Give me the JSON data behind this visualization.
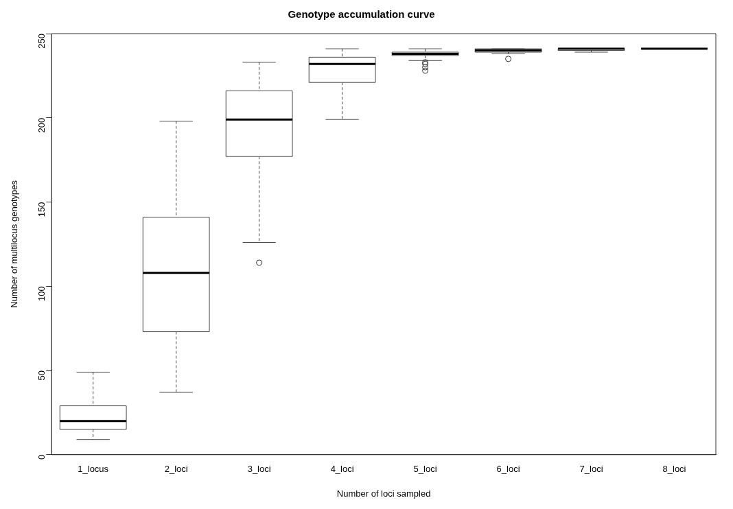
{
  "chart_data": {
    "type": "box",
    "title": "Genotype accumulation curve",
    "xlabel": "Number of loci sampled",
    "ylabel": "Number of multilocus genotypes",
    "categories": [
      "1_locus",
      "2_loci",
      "3_loci",
      "4_loci",
      "5_loci",
      "6_loci",
      "7_loci",
      "8_loci"
    ],
    "boxes": [
      {
        "low": 9,
        "q1": 15,
        "median": 20,
        "q3": 29,
        "high": 49
      },
      {
        "low": 37,
        "q1": 73,
        "median": 108,
        "q3": 141,
        "high": 198
      },
      {
        "low": 126,
        "q1": 177,
        "median": 199,
        "q3": 216,
        "high": 233,
        "outliers": [
          114
        ]
      },
      {
        "low": 199,
        "q1": 221,
        "median": 232,
        "q3": 236,
        "high": 241
      },
      {
        "low": 234,
        "q1": 237,
        "median": 238,
        "q3": 239,
        "high": 241,
        "outliers": [
          233,
          232,
          230,
          228
        ]
      },
      {
        "low": 238,
        "q1": 239,
        "median": 240,
        "q3": 241,
        "high": 241,
        "outliers": [
          235
        ]
      },
      {
        "low": 239,
        "q1": 240,
        "median": 241,
        "q3": 241,
        "high": 241
      },
      {
        "low": 241,
        "q1": 241,
        "median": 241,
        "q3": 241,
        "high": 241
      }
    ],
    "ylim": [
      0,
      250
    ],
    "yticks": [
      0,
      50,
      100,
      150,
      200,
      250
    ],
    "grid": false,
    "legend": false
  }
}
